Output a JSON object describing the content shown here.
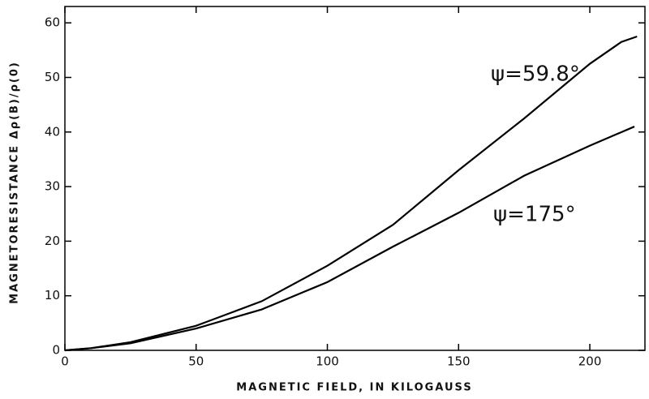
{
  "chart_data": {
    "type": "line",
    "xlabel": "MAGNETIC FIELD, IN KILOGAUSS",
    "ylabel": "MAGNETORESISTANCE Δρ(B)/ρ(0)",
    "series": [
      {
        "name": "ψ=59.8°",
        "color": "#000000",
        "x": [
          0,
          10,
          25,
          50,
          75,
          100,
          125,
          150,
          175,
          200,
          212,
          218
        ],
        "values": [
          0,
          0.4,
          1.5,
          4.5,
          9,
          15.5,
          23,
          33,
          42.5,
          52.5,
          56.5,
          57.5
        ]
      },
      {
        "name": "ψ=175°",
        "color": "#000000",
        "x": [
          0,
          10,
          25,
          50,
          75,
          100,
          125,
          150,
          175,
          200,
          217
        ],
        "values": [
          0,
          0.4,
          1.3,
          4,
          7.5,
          12.5,
          19,
          25.2,
          32,
          37.5,
          41
        ]
      }
    ],
    "xlim": [
      0,
      221
    ],
    "xticks": [
      0,
      50,
      100,
      150,
      200
    ],
    "ylim": [
      0,
      63
    ],
    "yticks": [
      0,
      10,
      20,
      30,
      40,
      50,
      60
    ],
    "grid": false
  }
}
